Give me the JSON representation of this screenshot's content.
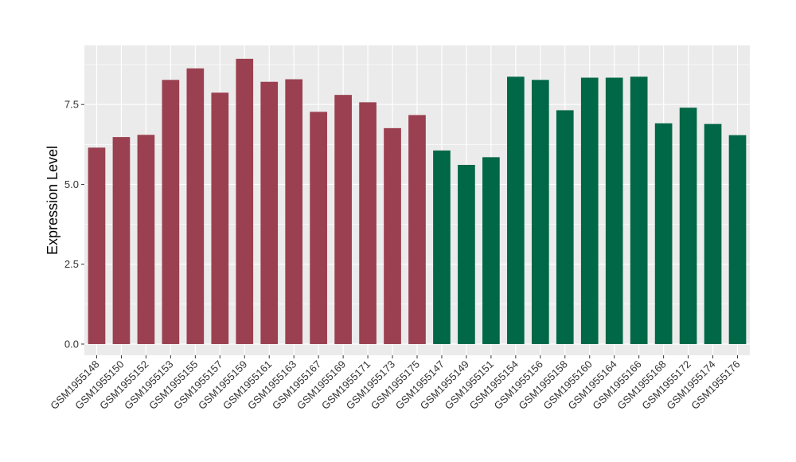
{
  "chart_data": {
    "type": "bar",
    "title": "",
    "xlabel": "",
    "ylabel": "Expression Level",
    "ylim": [
      -0.35,
      9.35
    ],
    "y_ticks": [
      0.0,
      2.5,
      5.0,
      7.5
    ],
    "y_tick_labels": [
      "0.0",
      "2.5",
      "5.0",
      "7.5"
    ],
    "grid": true,
    "legend": "none",
    "background_color": "#EBEBEB",
    "grid_color": "#FFFFFF",
    "group_colors": [
      "#9A4050",
      "#006747"
    ],
    "categories": [
      "GSM1955148",
      "GSM1955150",
      "GSM1955152",
      "GSM1955153",
      "GSM1955155",
      "GSM1955157",
      "GSM1955159",
      "GSM1955161",
      "GSM1955163",
      "GSM1955167",
      "GSM1955169",
      "GSM1955171",
      "GSM1955173",
      "GSM1955175",
      "GSM1955147",
      "GSM1955149",
      "GSM1955151",
      "GSM1955154",
      "GSM1955156",
      "GSM1955158",
      "GSM1955160",
      "GSM1955164",
      "GSM1955166",
      "GSM1955168",
      "GSM1955172",
      "GSM1955174",
      "GSM1955176"
    ],
    "values": [
      6.15,
      6.48,
      6.55,
      8.27,
      8.63,
      7.87,
      8.93,
      8.21,
      8.29,
      7.27,
      7.8,
      7.57,
      6.76,
      7.17,
      6.06,
      5.61,
      5.85,
      8.37,
      8.27,
      7.32,
      8.34,
      8.34,
      8.37,
      6.91,
      7.4,
      6.89,
      6.54
    ],
    "groups": [
      0,
      0,
      0,
      0,
      0,
      0,
      0,
      0,
      0,
      0,
      0,
      0,
      0,
      0,
      1,
      1,
      1,
      1,
      1,
      1,
      1,
      1,
      1,
      1,
      1,
      1,
      1
    ]
  }
}
